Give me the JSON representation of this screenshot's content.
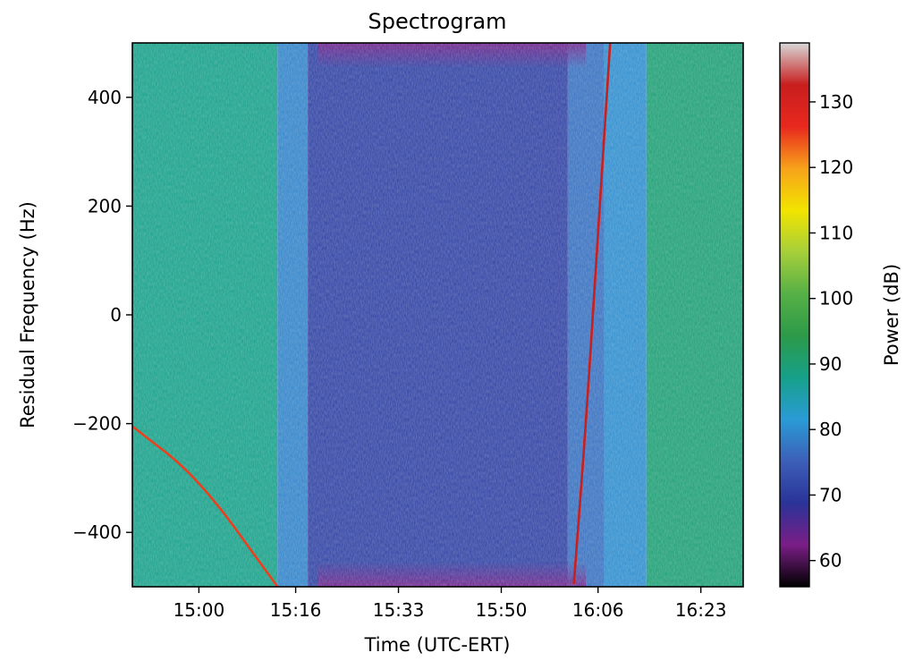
{
  "chart_data": {
    "type": "heatmap",
    "title": "Spectrogram",
    "xlabel": "Time (UTC-ERT)",
    "ylabel": "Residual Frequency (Hz)",
    "colorbar_label": "Power (dB)",
    "xlim": [
      "14:49",
      "16:30"
    ],
    "ylim": [
      -500,
      500
    ],
    "x_ticks": [
      "15:00",
      "15:16",
      "15:33",
      "15:50",
      "16:06",
      "16:23"
    ],
    "y_ticks": [
      400,
      200,
      0,
      -200,
      -400
    ],
    "colorbar_range": [
      56,
      139
    ],
    "colorbar_ticks": [
      130,
      120,
      110,
      100,
      90,
      80,
      70,
      60
    ],
    "colormap": [
      "#000000",
      "#7a1e86",
      "#2a3398",
      "#3c5fb8",
      "#2a9bd5",
      "#16a08a",
      "#2c9a48",
      "#56b046",
      "#a6cf3a",
      "#f2e400",
      "#f7a21a",
      "#e8281e",
      "#c81e1e",
      "#d8d8d8"
    ],
    "segments": [
      {
        "start": "14:49",
        "end": "15:13",
        "level_db": 88
      },
      {
        "start": "15:13",
        "end": "15:18",
        "level_db": 79
      },
      {
        "start": "15:18",
        "end": "16:01",
        "level_db": 71
      },
      {
        "start": "16:01",
        "end": "16:07",
        "level_db": 77
      },
      {
        "start": "16:07",
        "end": "16:14",
        "level_db": 80
      },
      {
        "start": "16:14",
        "end": "16:30",
        "level_db": 90
      }
    ],
    "tracks": [
      {
        "name": "",
        "points": [
          [
            "14:49",
            -205
          ],
          [
            "15:00",
            -300
          ],
          [
            "15:13",
            -500
          ]
        ],
        "level_db": 125
      },
      {
        "name": "",
        "points": [
          [
            "16:02",
            -495
          ],
          [
            "16:04",
            -200
          ],
          [
            "16:06",
            150
          ],
          [
            "16:08",
            500
          ]
        ],
        "level_db": 132
      }
    ]
  }
}
